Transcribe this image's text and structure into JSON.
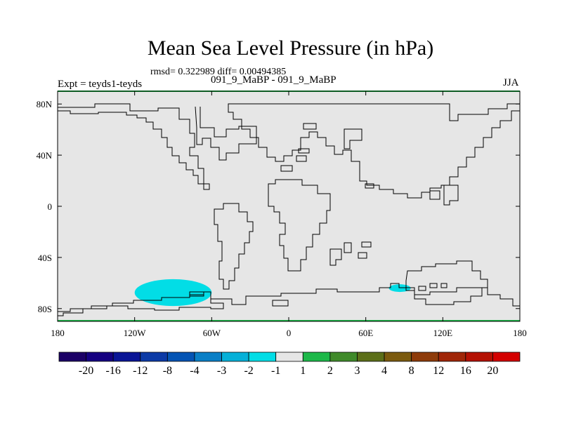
{
  "chart_data": {
    "type": "heatmap",
    "title": "Mean Sea Level Pressure (in hPa)",
    "stats_text": "rmsd= 0.322989 diff= 0.00494385",
    "subtitle": "091_9_MaBP - 091_9_MaBP",
    "left_label": "Expt = teyds1-teyds",
    "right_label": "JJA",
    "xlim": [
      -180,
      180
    ],
    "ylim": [
      -90,
      90
    ],
    "x_ticks": [
      {
        "value": -180,
        "label": "180"
      },
      {
        "value": -120,
        "label": "120W"
      },
      {
        "value": -60,
        "label": "60W"
      },
      {
        "value": 0,
        "label": "0"
      },
      {
        "value": 60,
        "label": "60E"
      },
      {
        "value": 120,
        "label": "120E"
      },
      {
        "value": 180,
        "label": "180"
      }
    ],
    "y_ticks": [
      {
        "value": 80,
        "label": "80N"
      },
      {
        "value": 40,
        "label": "40N"
      },
      {
        "value": 0,
        "label": "0"
      },
      {
        "value": -40,
        "label": "40S"
      },
      {
        "value": -80,
        "label": "80S"
      }
    ],
    "background_value_class": "-1 to 1",
    "anomalies": [
      {
        "name": "south-pacific-low",
        "lon_range": [
          -120,
          -60
        ],
        "lat_range": [
          -78,
          -57
        ],
        "value_class": "-2 to -1"
      },
      {
        "name": "southern-indian-low",
        "lon_range": [
          78,
          95
        ],
        "lat_range": [
          -67,
          -61
        ],
        "value_class": "-2 to -1"
      }
    ],
    "colorbar": {
      "levels": [
        "-20",
        "-16",
        "-12",
        "-8",
        "-4",
        "-3",
        "-2",
        "-1",
        "1",
        "2",
        "3",
        "4",
        "8",
        "12",
        "16",
        "20"
      ],
      "colors": [
        "#1b0066",
        "#150081",
        "#0a1596",
        "#0c3aa6",
        "#0454b4",
        "#0a7fc6",
        "#05b0d8",
        "#02dde6",
        "#e6e6e6",
        "#1db849",
        "#3f8a2a",
        "#5c6f19",
        "#7b5a0f",
        "#8e3b0a",
        "#a02608",
        "#b41103",
        "#d40000"
      ]
    }
  }
}
